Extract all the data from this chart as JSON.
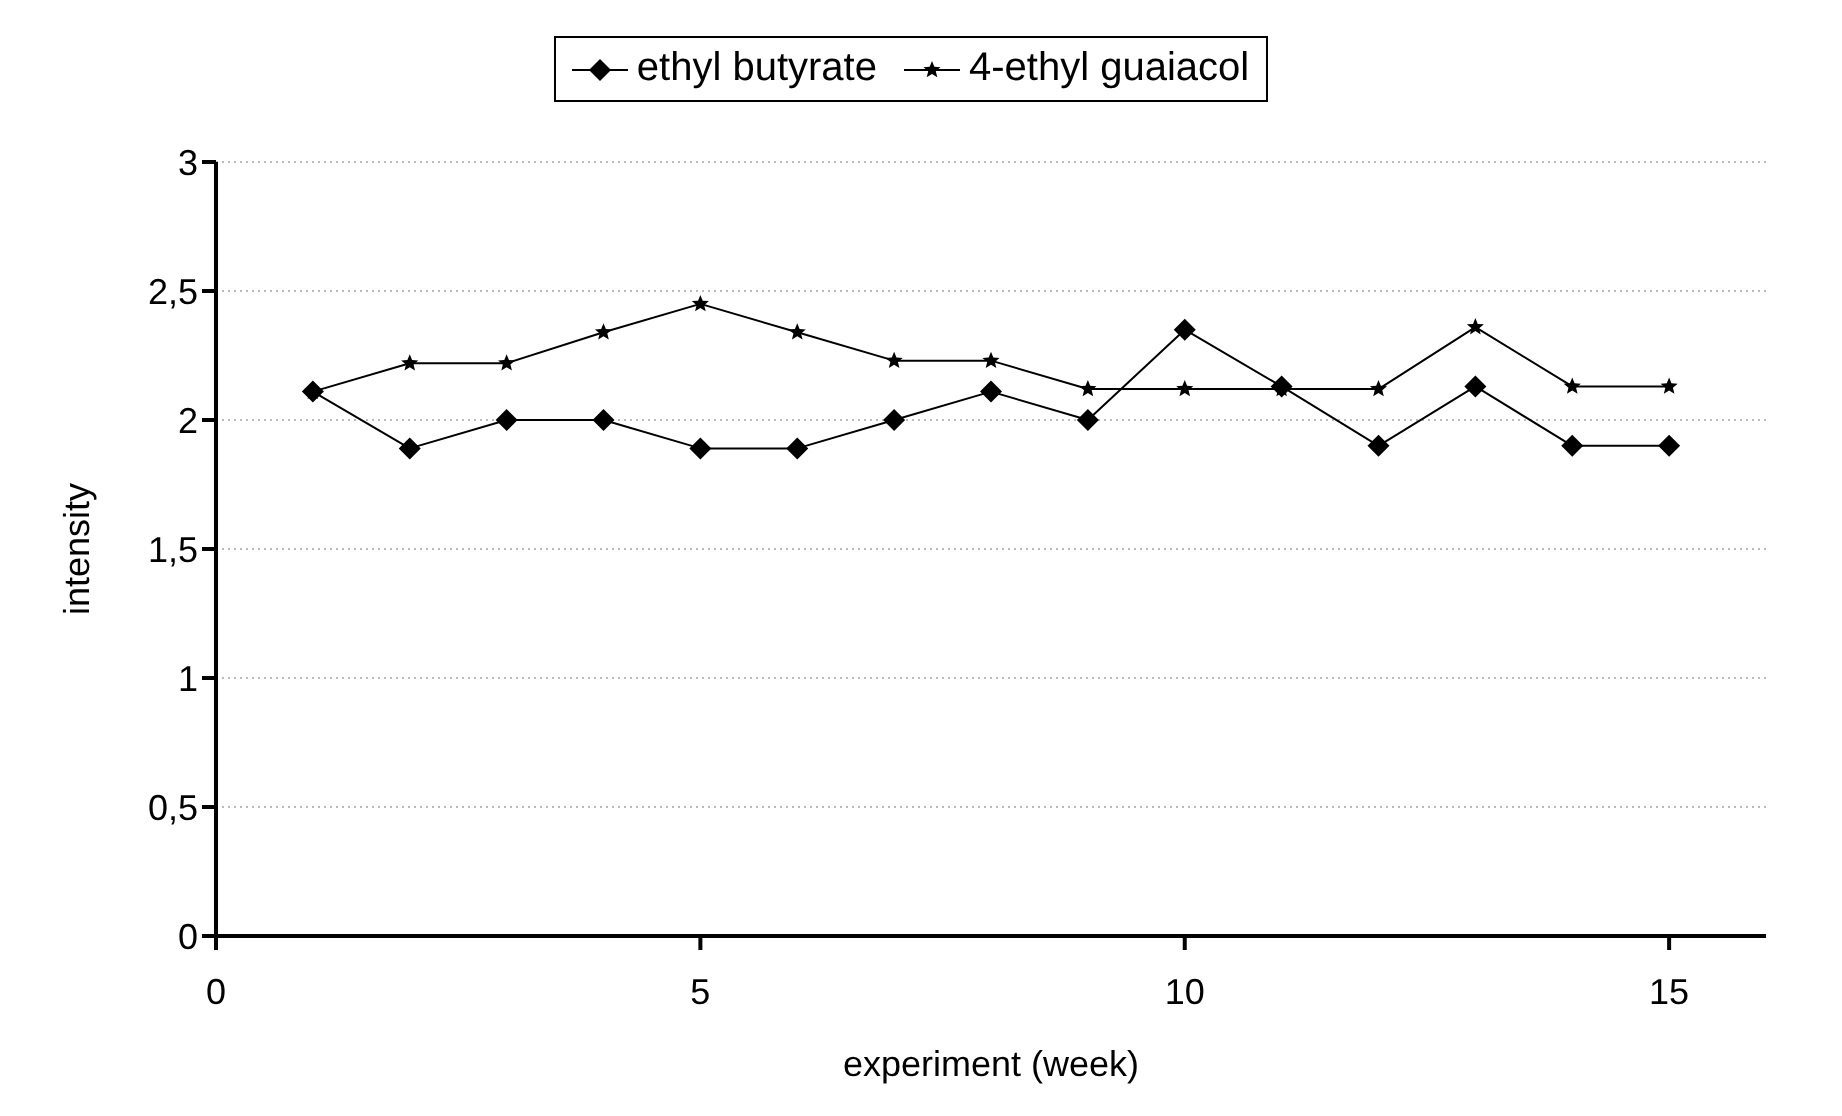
{
  "chart_data": {
    "type": "line",
    "xlabel": "experiment (week)",
    "ylabel": "intensity",
    "x": [
      1,
      2,
      3,
      4,
      5,
      6,
      7,
      8,
      9,
      10,
      11,
      12,
      13,
      14,
      15
    ],
    "series": [
      {
        "name": "ethyl butyrate",
        "color": "#000000",
        "marker": "diamond",
        "values": [
          2.11,
          1.89,
          2.0,
          2.0,
          1.89,
          1.89,
          2.0,
          2.11,
          2.0,
          2.35,
          2.13,
          1.9,
          2.13,
          1.9,
          1.9
        ]
      },
      {
        "name": "4-ethyl guaiacol",
        "color": "#000000",
        "marker": "star",
        "values": [
          2.11,
          2.22,
          2.22,
          2.34,
          2.45,
          2.34,
          2.23,
          2.23,
          2.12,
          2.12,
          2.12,
          2.12,
          2.36,
          2.13,
          2.13
        ]
      }
    ],
    "xlim": [
      0,
      16
    ],
    "xticks": [
      0,
      5,
      10,
      15
    ],
    "ylim": [
      0,
      3
    ],
    "yticks": [
      {
        "value": 0,
        "label": "0"
      },
      {
        "value": 0.5,
        "label": "0,5"
      },
      {
        "value": 1,
        "label": "1"
      },
      {
        "value": 1.5,
        "label": "1,5"
      },
      {
        "value": 2,
        "label": "2"
      },
      {
        "value": 2.5,
        "label": "2,5"
      },
      {
        "value": 3,
        "label": "3"
      }
    ],
    "grid": "y",
    "legend": "top",
    "line_style": "solid"
  }
}
